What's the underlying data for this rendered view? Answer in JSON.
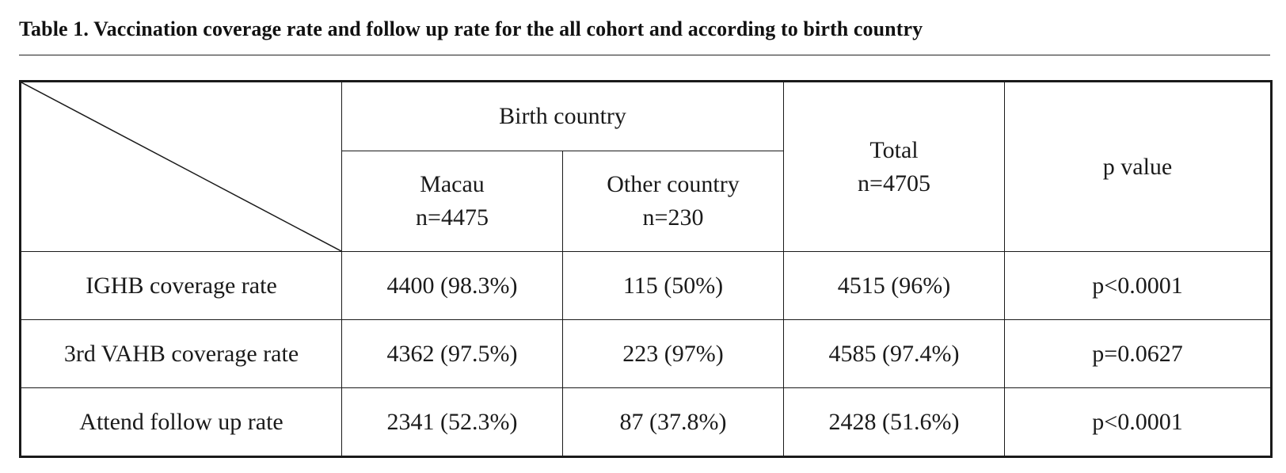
{
  "caption": "Table 1. Vaccination coverage rate and follow up rate for the all cohort and according to birth country",
  "header": {
    "group_label": "Birth country",
    "columns": [
      {
        "name": "Macau",
        "n": "n=4475"
      },
      {
        "name": "Other country",
        "n": "n=230"
      }
    ],
    "total": {
      "name": "Total",
      "n": "n=4705"
    },
    "pvalue": "p value"
  },
  "rows": [
    {
      "label": "IGHB coverage rate",
      "macau": "4400 (98.3%)",
      "other": "115 (50%)",
      "total": "4515 (96%)",
      "p": "p<0.0001"
    },
    {
      "label": "3rd VAHB coverage rate",
      "macau": "4362 (97.5%)",
      "other": "223 (97%)",
      "total": "4585 (97.4%)",
      "p": "p=0.0627"
    },
    {
      "label": "Attend follow up rate",
      "macau": "2341 (52.3%)",
      "other": "87 (37.8%)",
      "total": "2428 (51.6%)",
      "p": "p<0.0001"
    }
  ]
}
